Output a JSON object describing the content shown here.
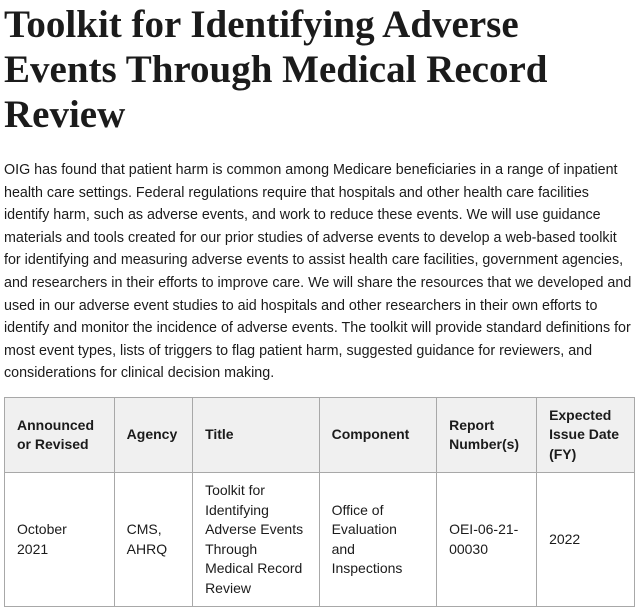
{
  "header": {
    "title": "Toolkit for Identifying Adverse Events Through Medical Record Review"
  },
  "description": "OIG has found that patient harm is common among Medicare beneficiaries in a range of inpatient health care settings. Federal regulations require that hospitals and other health care facilities identify harm, such as adverse events, and work to reduce these events. We will use guidance materials and tools created for our prior studies of adverse events to develop a web-based toolkit for identifying and measuring adverse events to assist health care facilities, government agencies, and researchers in their efforts to improve care. We will share the resources that we developed and used in our adverse event studies to aid hospitals and other researchers in their own efforts to identify and monitor the incidence of adverse events. The toolkit will provide standard definitions for most event types, lists of triggers to flag patient harm, suggested guidance for reviewers, and considerations for clinical decision making.",
  "table": {
    "columns": [
      "Announced or Revised",
      "Agency",
      "Title",
      "Component",
      "Report Number(s)",
      "Expected Issue Date (FY)"
    ],
    "rows": [
      [
        "October 2021",
        "CMS, AHRQ",
        "Toolkit for Identifying Adverse Events Through Medical Record Review",
        "Office of Evaluation and Inspections",
        "OEI-06-21-00030",
        "2022"
      ]
    ]
  }
}
